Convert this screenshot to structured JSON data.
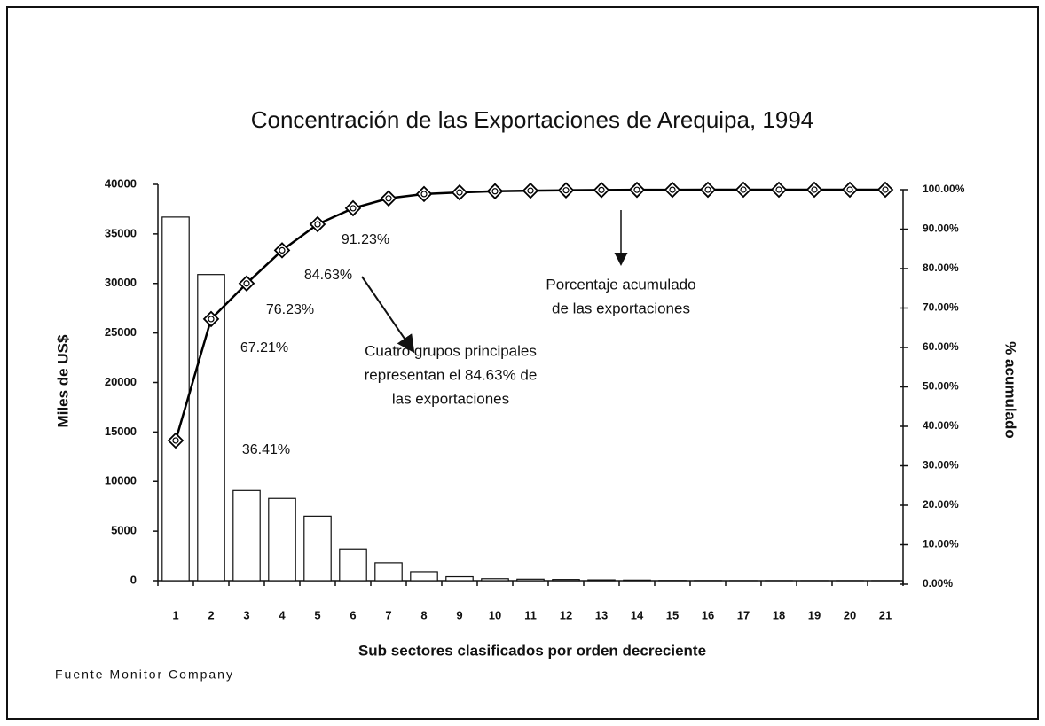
{
  "chart_data": {
    "type": "bar",
    "title": "Concentración de las Exportaciones de Arequipa, 1994",
    "x_label": "Sub sectores clasificados por orden decreciente",
    "y_label": "Miles de US$",
    "y2_label": "% acumulado",
    "source": "Fuente   Monitor Company",
    "annotations": [
      {
        "lines": [
          "Cuatro grupos principales",
          "representan el 84.63% de",
          "las exportaciones"
        ]
      },
      {
        "lines": [
          "Porcentaje acumulado",
          "de las exportaciones"
        ]
      }
    ],
    "categories": [
      "1",
      "2",
      "3",
      "4",
      "5",
      "6",
      "7",
      "8",
      "9",
      "10",
      "11",
      "12",
      "13",
      "14",
      "15",
      "16",
      "17",
      "18",
      "19",
      "20",
      "21"
    ],
    "series": [
      {
        "type": "bar",
        "axis": "y",
        "color": "#ffffff",
        "values": [
          36700,
          30900,
          9100,
          8300,
          6500,
          3200,
          1800,
          900,
          400,
          200,
          150,
          120,
          80,
          60,
          20,
          10,
          5,
          5,
          5,
          5,
          5
        ]
      },
      {
        "type": "line",
        "axis": "y2",
        "color": "#000000",
        "values": [
          36.41,
          67.21,
          76.23,
          84.63,
          91.23,
          95.3,
          97.8,
          98.9,
          99.3,
          99.6,
          99.75,
          99.85,
          99.92,
          99.96,
          99.98,
          99.99,
          100,
          100,
          100,
          100,
          100
        ],
        "value_labels": [
          "36.41%",
          "67.21%",
          "76.23%",
          "84.63%",
          "91.23%",
          null,
          null,
          null,
          null,
          null,
          null,
          null,
          null,
          null,
          null,
          null,
          null,
          null,
          null,
          null,
          null
        ]
      }
    ],
    "ylim": [
      0,
      40000
    ],
    "yticks": [
      0,
      5000,
      10000,
      15000,
      20000,
      25000,
      30000,
      35000,
      40000
    ],
    "y2lim": [
      0,
      100
    ],
    "y2ticks": [
      {
        "value": 0,
        "label": "0.00%"
      },
      {
        "value": 10,
        "label": "10.00%"
      },
      {
        "value": 20,
        "label": "20.00%"
      },
      {
        "value": 30,
        "label": "30.00%"
      },
      {
        "value": 40,
        "label": "40.00%"
      },
      {
        "value": 50,
        "label": "50.00%"
      },
      {
        "value": 60,
        "label": "60.00%"
      },
      {
        "value": 70,
        "label": "70.00%"
      },
      {
        "value": 80,
        "label": "80.00%"
      },
      {
        "value": 90,
        "label": "90.00%"
      },
      {
        "value": 100,
        "label": "100.00%"
      }
    ]
  }
}
